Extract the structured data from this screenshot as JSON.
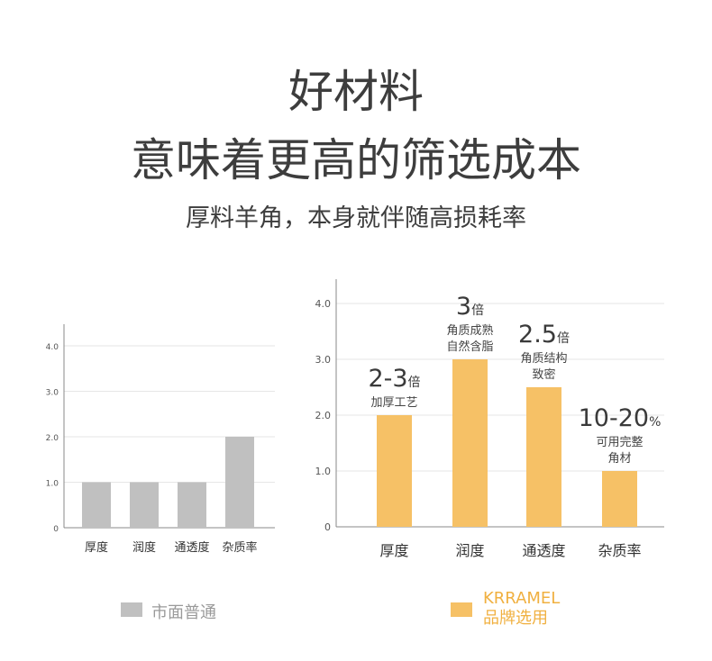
{
  "header": {
    "title_line1": "好材料",
    "title_line2": "意味着更高的筛选成本",
    "subtitle": "厚料羊角，本身就伴随高损耗率"
  },
  "colors": {
    "market": "#c0c0c0",
    "brand": "#f6c166",
    "text": "#3d3d3d",
    "grid": "#e6e6e6",
    "axis": "#888888"
  },
  "chart_data": [
    {
      "type": "bar",
      "title": "",
      "series_name": "市面普通",
      "categories": [
        "厚度",
        "润度",
        "通透度",
        "杂质率"
      ],
      "values": [
        1,
        1,
        1,
        2
      ],
      "ylim": [
        0,
        4.4
      ],
      "yticks": [
        "0",
        "1.0",
        "2.0",
        "3.0",
        "4.0"
      ],
      "grid": true
    },
    {
      "type": "bar",
      "title": "",
      "series_name": "KRRAMEL 品牌选用",
      "categories": [
        "厚度",
        "润度",
        "通透度",
        "杂质率"
      ],
      "values": [
        2,
        3,
        2.5,
        1
      ],
      "ylim": [
        0,
        4.4
      ],
      "yticks": [
        "0",
        "1.0",
        "2.0",
        "3.0",
        "4.0"
      ],
      "grid": true,
      "annotations": [
        {
          "big": "2-3",
          "unit": "倍",
          "lines": [
            "加厚工艺"
          ]
        },
        {
          "big": "3",
          "unit": "倍",
          "lines": [
            "角质成熟",
            "自然含脂"
          ]
        },
        {
          "big": "2.5",
          "unit": "倍",
          "lines": [
            "角质结构",
            "致密"
          ]
        },
        {
          "big": "10-20",
          "unit": "%",
          "lines": [
            "可用完整",
            "角材"
          ]
        }
      ]
    }
  ],
  "legend": {
    "market": "市面普通",
    "brand_line1": "KRRAMEL",
    "brand_line2": "品牌选用"
  }
}
